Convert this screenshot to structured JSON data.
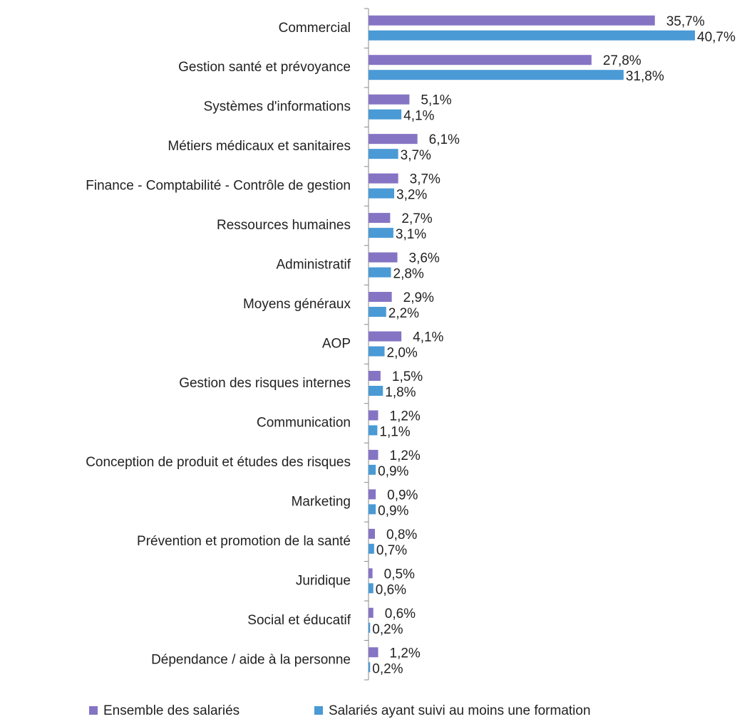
{
  "chart_data": {
    "type": "bar",
    "orientation": "horizontal",
    "categories": [
      "Commercial",
      "Gestion santé et prévoyance",
      "Systèmes d'informations",
      "Métiers médicaux et sanitaires",
      "Finance - Comptabilité - Contrôle de gestion",
      "Ressources humaines",
      "Administratif",
      "Moyens généraux",
      "AOP",
      "Gestion des risques internes",
      "Communication",
      "Conception de produit et études des risques",
      "Marketing",
      "Prévention et promotion de la santé",
      "Juridique",
      "Social et éducatif",
      "Dépendance / aide à la personne"
    ],
    "series": [
      {
        "name": "Ensemble des salariés",
        "color": "#8574c4",
        "values": [
          35.7,
          27.8,
          5.1,
          6.1,
          3.7,
          2.7,
          3.6,
          2.9,
          4.1,
          1.5,
          1.2,
          1.2,
          0.9,
          0.8,
          0.5,
          0.6,
          1.2
        ],
        "value_labels": [
          "35,7%",
          "27,8%",
          "5,1%",
          "6,1%",
          "3,7%",
          "2,7%",
          "3,6%",
          "2,9%",
          "4,1%",
          "1,5%",
          "1,2%",
          "1,2%",
          "0,9%",
          "0,8%",
          "0,5%",
          "0,6%",
          "1,2%"
        ]
      },
      {
        "name": "Salariés ayant suivi au moins une formation",
        "color": "#4a9ad6",
        "values": [
          40.7,
          31.8,
          4.1,
          3.7,
          3.2,
          3.1,
          2.8,
          2.2,
          2.0,
          1.8,
          1.1,
          0.9,
          0.9,
          0.7,
          0.6,
          0.2,
          0.2
        ],
        "value_labels": [
          "40,7%",
          "31,8%",
          "4,1%",
          "3,7%",
          "3,2%",
          "3,1%",
          "2,8%",
          "2,2%",
          "2,0%",
          "1,8%",
          "1,1%",
          "0,9%",
          "0,9%",
          "0,7%",
          "0,6%",
          "0,2%",
          "0,2%"
        ]
      }
    ],
    "legend": "bottom"
  }
}
